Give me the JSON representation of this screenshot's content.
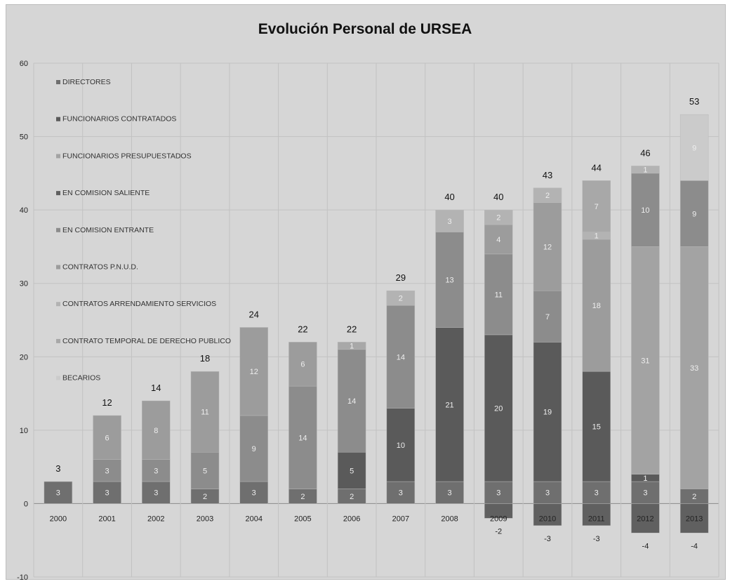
{
  "chart_data": {
    "type": "bar",
    "stacked": true,
    "title": "Evolución Personal de URSEA",
    "xlabel": "",
    "ylabel": "",
    "ylim": [
      -10,
      60
    ],
    "yticks": [
      -10,
      0,
      10,
      20,
      30,
      40,
      50,
      60
    ],
    "grid": true,
    "legend_position": "left (inside plot)",
    "categories": [
      "2000",
      "2001",
      "2002",
      "2003",
      "2004",
      "2005",
      "2006",
      "2007",
      "2008",
      "2009",
      "2010",
      "2011",
      "2012",
      "2013"
    ],
    "series": [
      {
        "name": "DIRECTORES",
        "color": "#6f6f6f",
        "values": [
          3,
          3,
          3,
          2,
          3,
          2,
          2,
          3,
          3,
          3,
          3,
          3,
          3,
          2
        ]
      },
      {
        "name": "FUNCIONARIOS CONTRATADOS",
        "color": "#5a5a5a",
        "values": [
          0,
          0,
          0,
          0,
          0,
          0,
          5,
          10,
          21,
          20,
          19,
          15,
          1,
          0
        ]
      },
      {
        "name": "FUNCIONARIOS PRESUPUESTADOS",
        "color": "#a3a3a3",
        "values": [
          0,
          0,
          0,
          0,
          0,
          0,
          0,
          0,
          0,
          0,
          0,
          0,
          31,
          33
        ]
      },
      {
        "name": "EN COMISION SALIENTE",
        "color": "#606060",
        "values": [
          0,
          0,
          0,
          0,
          0,
          0,
          0,
          0,
          0,
          -2,
          -3,
          -3,
          -4,
          -4
        ]
      },
      {
        "name": "EN COMISION ENTRANTE",
        "color": "#8c8c8c",
        "values": [
          0,
          3,
          3,
          5,
          9,
          14,
          14,
          14,
          13,
          11,
          7,
          0,
          10,
          9
        ]
      },
      {
        "name": "CONTRATOS P.N.U.D.",
        "color": "#9c9c9c",
        "values": [
          0,
          6,
          8,
          11,
          12,
          6,
          0,
          0,
          0,
          4,
          12,
          18,
          0,
          0
        ]
      },
      {
        "name": "CONTRATOS ARRENDAMIENTO SERVICIOS",
        "color": "#b3b3b3",
        "values": [
          0,
          0,
          0,
          0,
          0,
          0,
          0,
          2,
          3,
          2,
          2,
          1,
          1,
          0
        ]
      },
      {
        "name": "CONTRATO TEMPORAL DE DERECHO PUBLICO",
        "color": "#a8a8a8",
        "values": [
          0,
          0,
          0,
          0,
          0,
          0,
          1,
          0,
          0,
          0,
          0,
          7,
          0,
          0
        ]
      },
      {
        "name": "BECARIOS",
        "color": "#cbcbcb",
        "values": [
          0,
          0,
          0,
          0,
          0,
          0,
          0,
          0,
          0,
          0,
          0,
          0,
          0,
          9
        ]
      }
    ],
    "totals": [
      3,
      12,
      14,
      18,
      24,
      22,
      22,
      29,
      40,
      40,
      43,
      44,
      46,
      53
    ]
  }
}
